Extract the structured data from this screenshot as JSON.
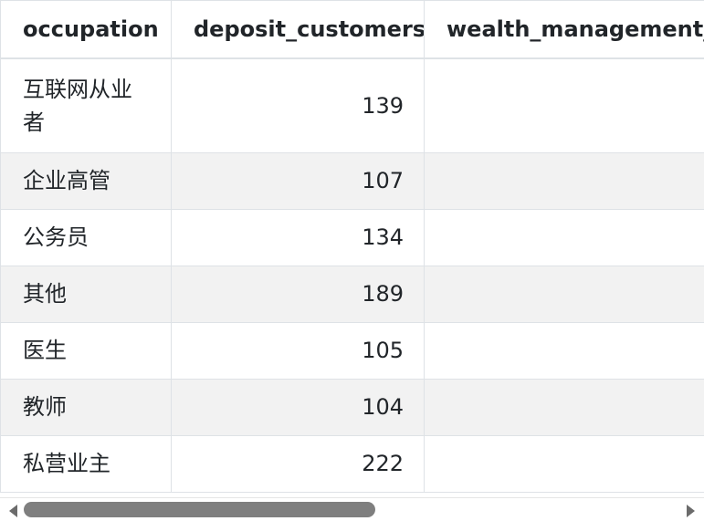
{
  "table": {
    "columns": [
      {
        "label": "occupation",
        "align": "left"
      },
      {
        "label": "deposit_customers",
        "align": "right"
      },
      {
        "label": "wealth_management_cu",
        "align": "left"
      }
    ],
    "rows": [
      {
        "occupation": "互联网从业者",
        "deposit_customers": "139",
        "wealth_management": ""
      },
      {
        "occupation": "企业高管",
        "deposit_customers": "107",
        "wealth_management": ""
      },
      {
        "occupation": "公务员",
        "deposit_customers": "134",
        "wealth_management": ""
      },
      {
        "occupation": "其他",
        "deposit_customers": "189",
        "wealth_management": ""
      },
      {
        "occupation": "医生",
        "deposit_customers": "105",
        "wealth_management": ""
      },
      {
        "occupation": "教师",
        "deposit_customers": "104",
        "wealth_management": ""
      },
      {
        "occupation": "私营业主",
        "deposit_customers": "222",
        "wealth_management": ""
      }
    ]
  },
  "scrollbar": {
    "horizontal_position": 0.0,
    "left_arrow_icon": "arrow-left-icon",
    "right_arrow_icon": "arrow-right-icon"
  },
  "colors": {
    "border": "#dee2e6",
    "striped_row": "#f2f2f2",
    "text": "#212529",
    "scroll_thumb": "#7f7f7f"
  }
}
